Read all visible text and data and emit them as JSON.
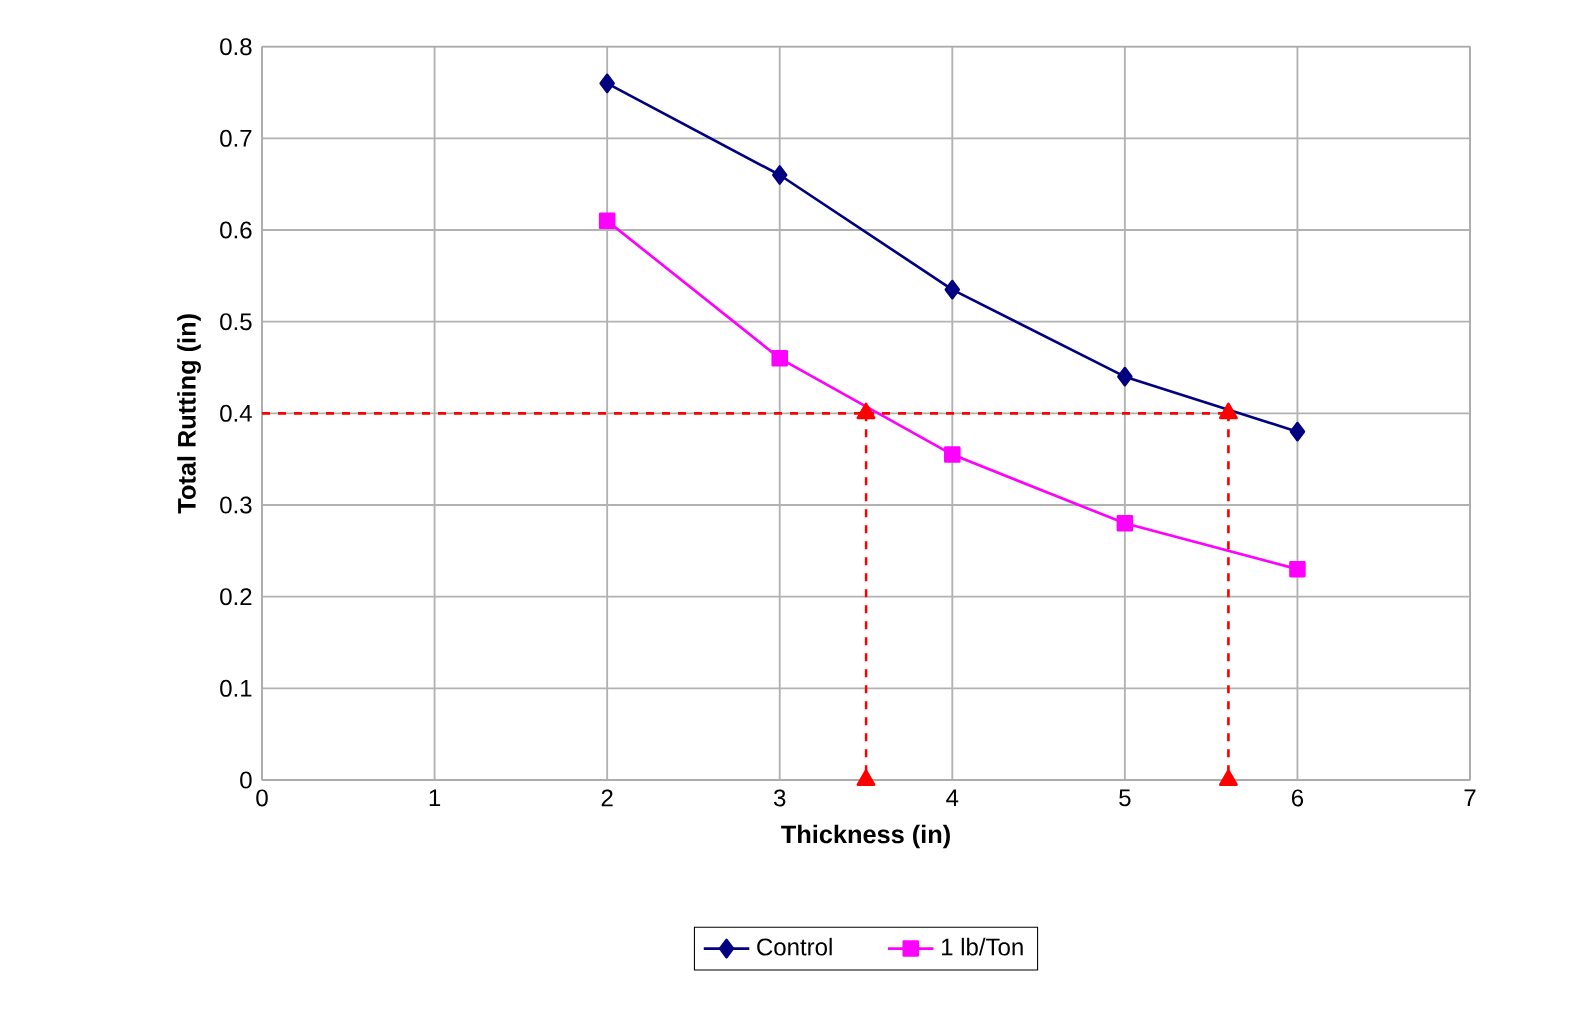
{
  "chart_data": {
    "type": "line",
    "xlabel": "Thickness (in)",
    "ylabel": "Total Rutting (in)",
    "xlim": [
      0,
      7
    ],
    "xticks": [
      0,
      1,
      2,
      3,
      4,
      5,
      6,
      7
    ],
    "ylim": [
      0,
      0.8
    ],
    "yticks": [
      0,
      0.1,
      0.2,
      0.3,
      0.4,
      0.5,
      0.6,
      0.7,
      0.8
    ],
    "grid": true,
    "legend": "bottom",
    "series": [
      {
        "name": "Control",
        "color": "#000080",
        "x": [
          2,
          3,
          4,
          5,
          6
        ],
        "values": [
          0.76,
          0.66,
          0.535,
          0.44,
          0.38
        ],
        "marker": "diamond"
      },
      {
        "name": "1 lb/Ton",
        "color": "#ff00ff",
        "x": [
          2,
          3,
          4,
          5,
          6
        ],
        "values": [
          0.61,
          0.46,
          0.355,
          0.28,
          0.23
        ],
        "marker": "square"
      },
      {
        "color": "#ff0000",
        "x": [
          0,
          3.5
        ],
        "values": [
          0.4,
          0.4
        ],
        "line_style": "dashed",
        "marker": "triangle"
      },
      {
        "color": "#ff0000",
        "x": [
          3.5,
          5.6
        ],
        "values": [
          0.4,
          0.4
        ],
        "line_style": "dashed",
        "marker": "triangle"
      },
      {
        "color": "#ff0000",
        "x": [
          3.5,
          3.5
        ],
        "values": [
          0.4,
          0
        ],
        "line_style": "dashed",
        "marker": "triangle"
      },
      {
        "color": "#ff0000",
        "x": [
          5.6,
          5.6
        ],
        "values": [
          0.4,
          0
        ],
        "line_style": "dashed",
        "marker": "triangle"
      }
    ]
  }
}
